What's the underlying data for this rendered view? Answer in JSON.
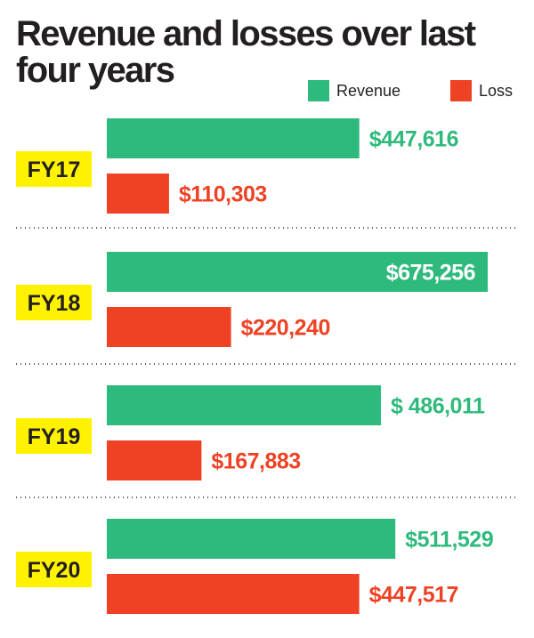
{
  "colors": {
    "revenue": "#2fba7d",
    "loss": "#ef4123",
    "year_badge": "#fff200",
    "text": "#231f20",
    "inside_label": "#ffffff"
  },
  "legend": {
    "revenue_label": "Revenue",
    "loss_label": "Loss"
  },
  "chart_data": {
    "type": "bar",
    "orientation": "horizontal",
    "title": "Revenue and losses over last four years",
    "categories": [
      "FY17",
      "FY18",
      "FY19",
      "FY20"
    ],
    "series": [
      {
        "name": "Revenue",
        "values": [
          447616,
          675256,
          486011,
          511529
        ],
        "labels": [
          "$447,616",
          "$675,256",
          "$ 486,011",
          "$511,529"
        ]
      },
      {
        "name": "Loss",
        "values": [
          110303,
          220240,
          167883,
          447517
        ],
        "labels": [
          "$110,303",
          "$220,240",
          "$167,883",
          "$447,517"
        ]
      }
    ],
    "xlabel": "",
    "ylabel": "",
    "xlim": [
      0,
      675256
    ],
    "grid": false,
    "legend_position": "top-right"
  }
}
